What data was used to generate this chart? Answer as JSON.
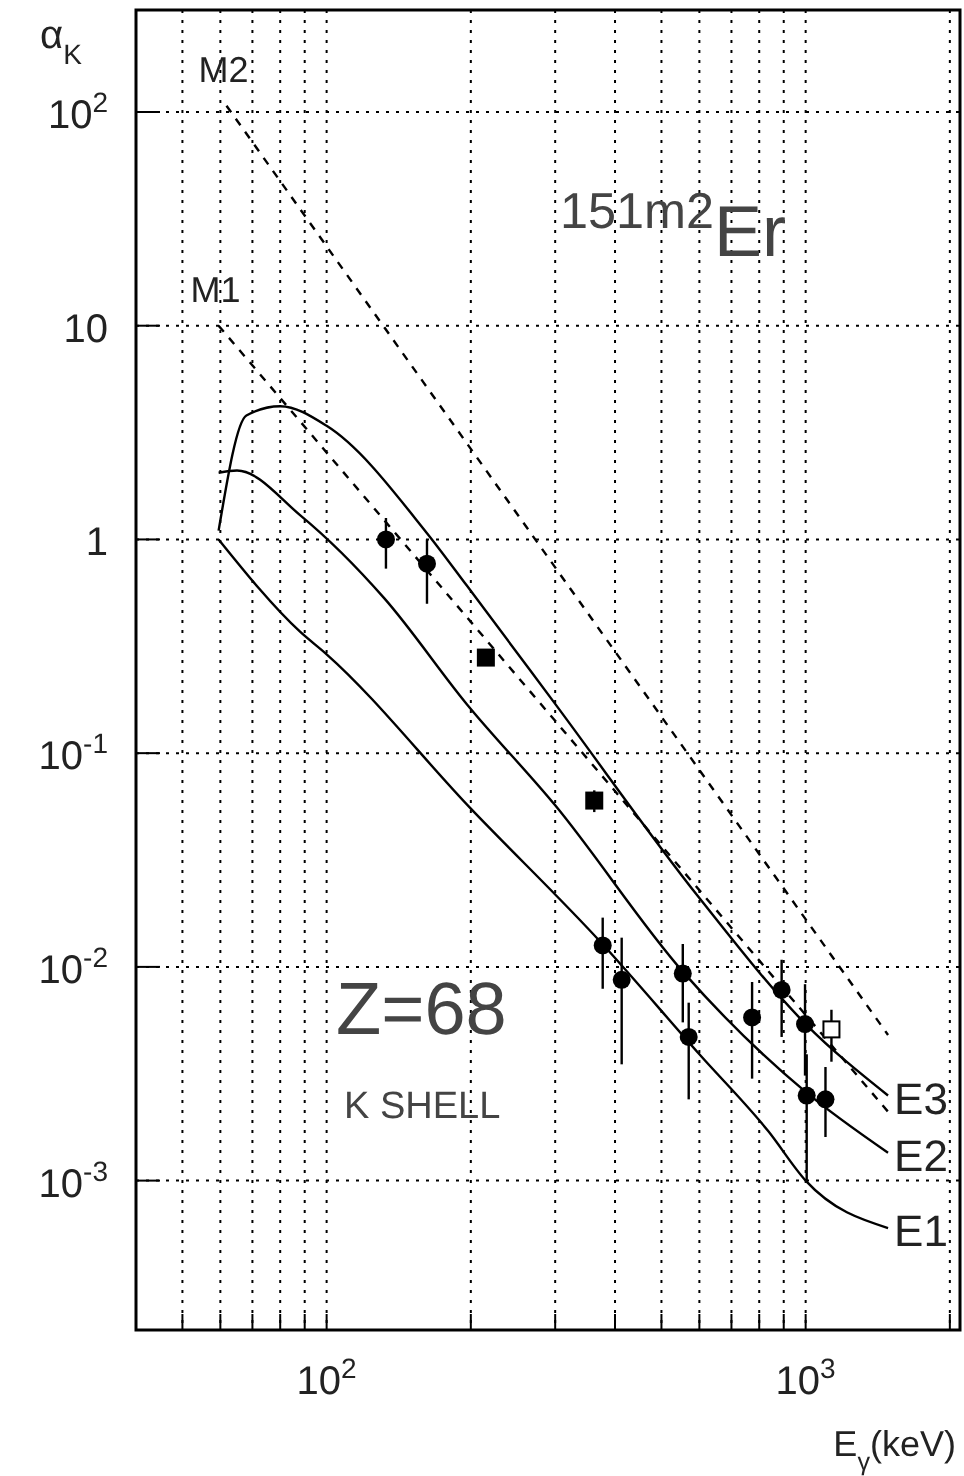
{
  "chart_data": {
    "type": "line",
    "ylabel": "α$_{K}$",
    "xlabel": "E$_{γ}$(keV)",
    "annotations": [
      "$^{151m2}$Er",
      "Z=68",
      "K SHELL"
    ],
    "log": "xy",
    "grid": true,
    "xlim": [
      40,
      2100
    ],
    "ylim": [
      0.0002,
      300
    ],
    "xticks": [
      {
        "value": 50,
        "label": null
      },
      {
        "value": 60,
        "label": null
      },
      {
        "value": 70,
        "label": null
      },
      {
        "value": 80,
        "label": null
      },
      {
        "value": 90,
        "label": null
      },
      {
        "value": 100,
        "label": "10$^{2}$"
      },
      {
        "value": 200,
        "label": null
      },
      {
        "value": 300,
        "label": null
      },
      {
        "value": 400,
        "label": null
      },
      {
        "value": 500,
        "label": null
      },
      {
        "value": 600,
        "label": null
      },
      {
        "value": 700,
        "label": null
      },
      {
        "value": 800,
        "label": null
      },
      {
        "value": 900,
        "label": null
      },
      {
        "value": 1000,
        "label": "10$^{3}$"
      },
      {
        "value": 2000,
        "label": null
      }
    ],
    "yticks": [
      {
        "value": 0.001,
        "label": "10$^{-3}$"
      },
      {
        "value": 0.01,
        "label": "10$^{-2}$"
      },
      {
        "value": 0.1,
        "label": "10$^{-1}$"
      },
      1,
      10,
      {
        "value": 100,
        "label": "10$^{2}$"
      }
    ],
    "series": [
      {
        "name": "E1",
        "color": "#000000",
        "line_style": "solid",
        "x": [
          59.5,
          88,
          100,
          200,
          374,
          600,
          836,
          1000,
          1486
        ],
        "values": [
          1.0,
          0.37,
          0.29,
          0.055,
          0.013,
          0.0039,
          0.0017,
          0.001,
          0.0006
        ]
      },
      {
        "name": "E2",
        "color": "#000000",
        "line_style": "solid",
        "x": [
          59.5,
          65,
          88,
          132,
          196,
          300,
          554,
          1000,
          1486
        ],
        "values": [
          2.05,
          2.1,
          1.3,
          0.53,
          0.17,
          0.057,
          0.0095,
          0.0026,
          0.00135
        ]
      },
      {
        "name": "E3",
        "color": "#000000",
        "line_style": "solid",
        "x": [
          59.5,
          68,
          80,
          100,
          162,
          196,
          300,
          600,
          1000,
          1486
        ],
        "values": [
          1.1,
          3.8,
          4.2,
          3.4,
          1.07,
          0.61,
          0.17,
          0.021,
          0.0054,
          0.0025
        ]
      },
      {
        "name": "M1",
        "color": "#000000",
        "line_style": "dashed",
        "x": [
          59.5,
          1486
        ],
        "values": [
          10,
          0.0021
        ]
      },
      {
        "name": "M2",
        "color": "#000000",
        "line_style": "dashed",
        "x": [
          61.8,
          1486
        ],
        "values": [
          107,
          0.0048
        ]
      },
      {
        "type": "scatter",
        "marker": "circle",
        "color": "#000000",
        "x": [
          133,
          162,
          377,
          413,
          554,
          570,
          773,
          891,
          997,
          1005,
          1100
        ],
        "values": [
          1.0,
          0.77,
          0.0126,
          0.0087,
          0.0093,
          0.0047,
          0.0058,
          0.0078,
          0.0054,
          0.0025,
          0.0024
        ],
        "errors": [
          [
            0.73,
            1.26
          ],
          [
            0.5,
            1.0
          ],
          [
            0.0079,
            0.017
          ],
          [
            0.0035,
            0.0137
          ],
          [
            0.0055,
            0.0128
          ],
          [
            0.0024,
            0.0068
          ],
          [
            0.003,
            0.0085
          ],
          [
            0.0047,
            0.0108
          ],
          [
            0.0031,
            0.0083
          ],
          [
            0.001,
            0.0039
          ],
          [
            0.0016,
            0.0034
          ]
        ]
      },
      {
        "type": "scatter",
        "marker": "square",
        "color": "#000000",
        "x": [
          215,
          362
        ],
        "values": [
          0.28,
          0.06
        ],
        "errors": [
          null,
          [
            0.053,
            0.067
          ]
        ]
      },
      {
        "type": "scatter",
        "marker": "square",
        "color": "#ffffff",
        "x": [
          1132
        ],
        "values": [
          0.0051
        ],
        "errors": [
          [
            0.0036,
            0.0063
          ]
        ]
      }
    ]
  }
}
